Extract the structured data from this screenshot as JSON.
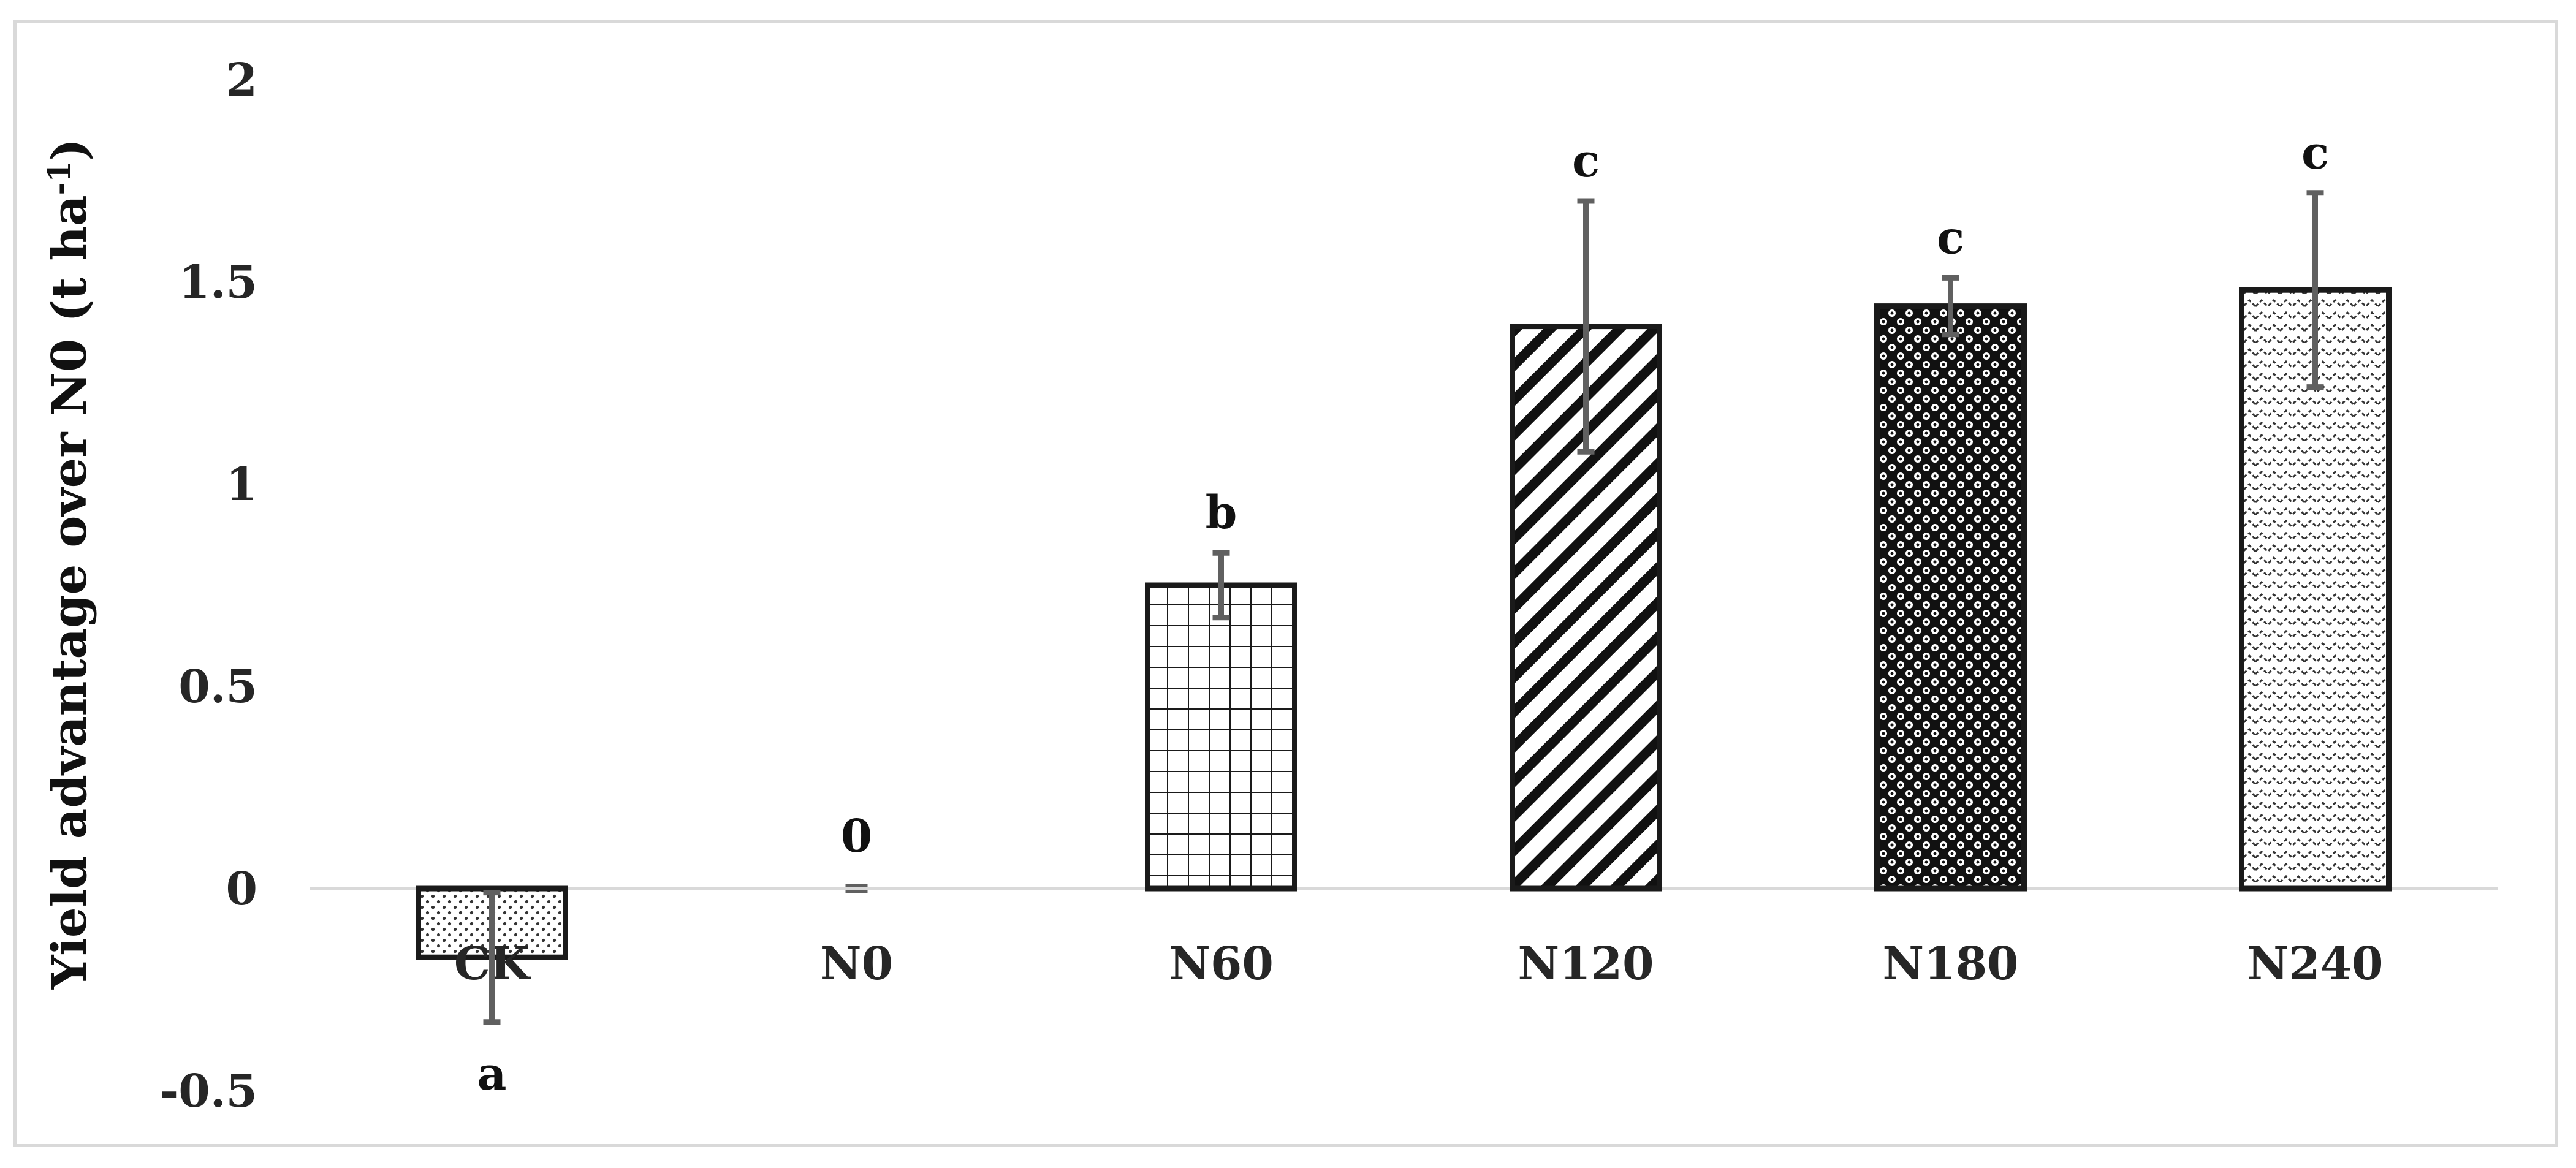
{
  "chart_data": {
    "type": "bar",
    "title": "",
    "xlabel": "",
    "ylabel": "Yield advantage over N0 (t ha",
    "ylabel_sup": "-1",
    "ylabel_close": ")",
    "ylim": [
      -0.5,
      2
    ],
    "yticks": [
      -0.5,
      0,
      0.5,
      1,
      1.5,
      2
    ],
    "ytick_labels": [
      "-0.5",
      "0",
      "0.5",
      "1",
      "1.5",
      "2"
    ],
    "grid": false,
    "categories": [
      "CK",
      "N0",
      "N60",
      "N120",
      "N180",
      "N240"
    ],
    "values": [
      -0.17,
      0,
      0.75,
      1.39,
      1.44,
      1.48
    ],
    "errors": [
      0.16,
      0,
      0.08,
      0.31,
      0.07,
      0.24
    ],
    "significance": [
      "a",
      "0",
      "b",
      "c",
      "c",
      "c"
    ],
    "patterns": [
      "dots",
      "none",
      "grid",
      "diagonal",
      "circles",
      "zigzag"
    ],
    "bar_fill": "#ffffff",
    "bar_stroke": "#1a1a1a",
    "error_color": "#606060",
    "axis_color": "#d9d9d9"
  }
}
